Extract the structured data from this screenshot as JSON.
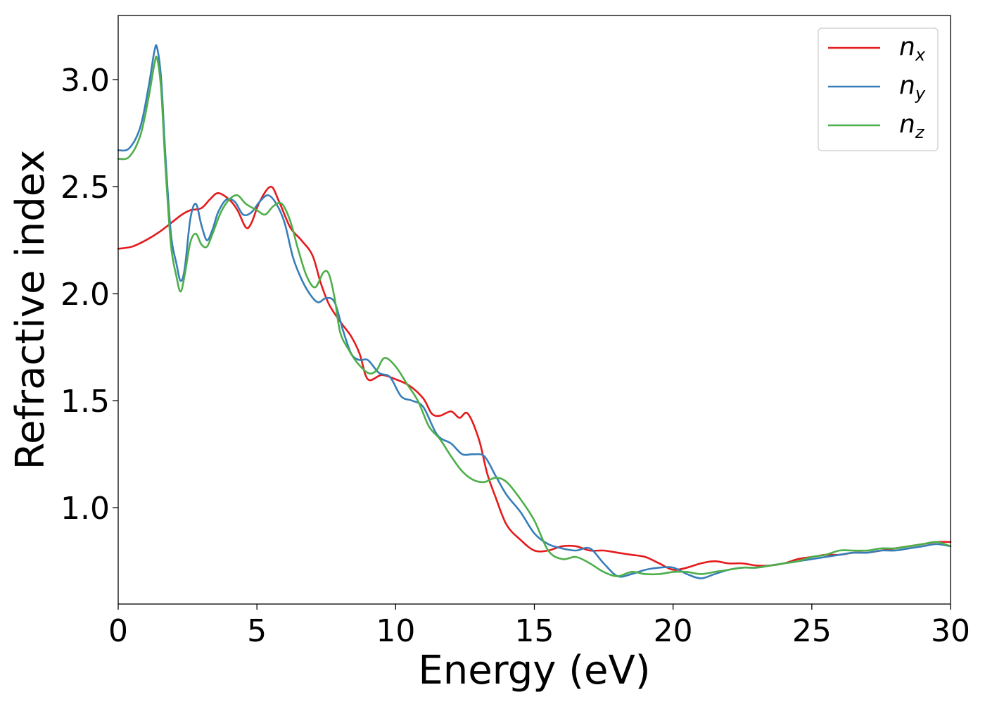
{
  "chart_data": {
    "type": "line",
    "title": "",
    "xlabel": "Energy (eV)",
    "ylabel": "Refractive index",
    "xlim": [
      0,
      30
    ],
    "ylim": [
      0.55,
      3.3
    ],
    "xticks": [
      "0",
      "5",
      "10",
      "15",
      "20",
      "25",
      "30"
    ],
    "yticks": [
      "1.0",
      "1.5",
      "2.0",
      "2.5",
      "3.0"
    ],
    "xtick_values": [
      0,
      5,
      10,
      15,
      20,
      25,
      30
    ],
    "ytick_values": [
      1.0,
      1.5,
      2.0,
      2.5,
      3.0
    ],
    "grid": false,
    "legend_position": "top-right",
    "series": [
      {
        "name": "n",
        "sub": "x",
        "color": "#e41a1c",
        "x": [
          0,
          0.5,
          1.0,
          1.5,
          2.0,
          2.3,
          2.6,
          3.0,
          3.3,
          3.6,
          4.0,
          4.3,
          4.6,
          4.8,
          5.1,
          5.5,
          5.8,
          6.2,
          6.6,
          7.0,
          7.3,
          7.6,
          8.0,
          8.4,
          8.7,
          9.0,
          9.5,
          10.0,
          10.5,
          11.0,
          11.3,
          11.6,
          12.0,
          12.3,
          12.6,
          13.0,
          13.3,
          13.6,
          14.0,
          14.5,
          15.0,
          15.5,
          16.0,
          16.5,
          17.0,
          17.5,
          18.0,
          18.5,
          19.0,
          19.5,
          20.0,
          20.5,
          21.0,
          21.5,
          22.0,
          22.5,
          23.0,
          23.5,
          24.0,
          24.5,
          25.0,
          25.5,
          26.0,
          26.5,
          27.0,
          27.5,
          28.0,
          28.5,
          29.0,
          29.5,
          30.0
        ],
        "y": [
          2.21,
          2.22,
          2.25,
          2.29,
          2.34,
          2.37,
          2.39,
          2.4,
          2.44,
          2.47,
          2.44,
          2.39,
          2.31,
          2.33,
          2.43,
          2.5,
          2.43,
          2.31,
          2.25,
          2.18,
          2.05,
          1.95,
          1.87,
          1.8,
          1.72,
          1.6,
          1.62,
          1.6,
          1.57,
          1.51,
          1.44,
          1.43,
          1.45,
          1.42,
          1.44,
          1.32,
          1.16,
          1.05,
          0.92,
          0.85,
          0.8,
          0.8,
          0.82,
          0.82,
          0.8,
          0.8,
          0.79,
          0.78,
          0.77,
          0.74,
          0.71,
          0.72,
          0.74,
          0.75,
          0.74,
          0.74,
          0.73,
          0.73,
          0.74,
          0.76,
          0.77,
          0.78,
          0.78,
          0.79,
          0.79,
          0.8,
          0.81,
          0.82,
          0.83,
          0.84,
          0.84
        ]
      },
      {
        "name": "n",
        "sub": "y",
        "color": "#377eb8",
        "x": [
          0,
          0.4,
          0.8,
          1.1,
          1.3,
          1.4,
          1.55,
          1.7,
          1.9,
          2.1,
          2.25,
          2.4,
          2.6,
          2.8,
          3.0,
          3.2,
          3.4,
          3.6,
          3.9,
          4.2,
          4.5,
          4.8,
          5.1,
          5.4,
          5.7,
          6.0,
          6.3,
          6.6,
          6.9,
          7.2,
          7.5,
          7.8,
          8.1,
          8.4,
          8.7,
          9.0,
          9.4,
          9.8,
          10.2,
          10.6,
          11.0,
          11.5,
          12.0,
          12.4,
          12.8,
          13.2,
          13.6,
          14.0,
          14.5,
          15.0,
          15.5,
          16.0,
          16.5,
          17.0,
          17.5,
          18.0,
          18.5,
          19.0,
          19.5,
          20.0,
          20.5,
          21.0,
          21.5,
          22.0,
          22.5,
          23.0,
          23.5,
          24.0,
          24.5,
          25.0,
          25.5,
          26.0,
          26.5,
          27.0,
          27.5,
          28.0,
          28.5,
          29.0,
          29.5,
          30.0
        ],
        "y": [
          2.67,
          2.68,
          2.78,
          2.97,
          3.13,
          3.15,
          3.0,
          2.65,
          2.28,
          2.14,
          2.06,
          2.12,
          2.35,
          2.42,
          2.32,
          2.25,
          2.3,
          2.38,
          2.44,
          2.43,
          2.37,
          2.38,
          2.43,
          2.46,
          2.42,
          2.33,
          2.17,
          2.07,
          2.0,
          1.96,
          1.98,
          1.96,
          1.83,
          1.72,
          1.69,
          1.69,
          1.63,
          1.61,
          1.52,
          1.5,
          1.47,
          1.34,
          1.3,
          1.25,
          1.25,
          1.24,
          1.15,
          1.06,
          0.98,
          0.88,
          0.83,
          0.81,
          0.8,
          0.81,
          0.74,
          0.68,
          0.69,
          0.71,
          0.72,
          0.72,
          0.69,
          0.67,
          0.69,
          0.71,
          0.72,
          0.72,
          0.73,
          0.74,
          0.75,
          0.76,
          0.77,
          0.78,
          0.79,
          0.79,
          0.8,
          0.8,
          0.81,
          0.82,
          0.83,
          0.82
        ]
      },
      {
        "name": "n",
        "sub": "z",
        "color": "#4daf4a",
        "x": [
          0,
          0.4,
          0.8,
          1.1,
          1.3,
          1.4,
          1.55,
          1.7,
          1.9,
          2.1,
          2.25,
          2.4,
          2.6,
          2.8,
          3.0,
          3.2,
          3.4,
          3.7,
          4.0,
          4.3,
          4.6,
          5.0,
          5.3,
          5.6,
          5.9,
          6.2,
          6.5,
          6.8,
          7.1,
          7.4,
          7.6,
          7.8,
          8.0,
          8.3,
          8.6,
          9.0,
          9.3,
          9.6,
          10.0,
          10.4,
          10.8,
          11.2,
          11.6,
          12.0,
          12.4,
          12.8,
          13.2,
          13.6,
          14.0,
          14.5,
          15.0,
          15.5,
          16.0,
          16.5,
          17.0,
          17.5,
          18.0,
          18.5,
          19.0,
          19.5,
          20.0,
          20.5,
          21.0,
          21.5,
          22.0,
          22.5,
          23.0,
          23.5,
          24.0,
          24.5,
          25.0,
          25.5,
          26.0,
          26.5,
          27.0,
          27.5,
          28.0,
          28.5,
          29.0,
          29.5,
          30.0
        ],
        "y": [
          2.63,
          2.64,
          2.74,
          2.92,
          3.07,
          3.1,
          2.95,
          2.6,
          2.23,
          2.08,
          2.01,
          2.09,
          2.24,
          2.28,
          2.23,
          2.22,
          2.28,
          2.38,
          2.44,
          2.46,
          2.42,
          2.39,
          2.37,
          2.41,
          2.42,
          2.34,
          2.2,
          2.08,
          2.03,
          2.1,
          2.09,
          1.98,
          1.82,
          1.74,
          1.68,
          1.63,
          1.64,
          1.7,
          1.66,
          1.58,
          1.5,
          1.38,
          1.32,
          1.24,
          1.17,
          1.13,
          1.12,
          1.14,
          1.12,
          1.04,
          0.94,
          0.8,
          0.76,
          0.77,
          0.74,
          0.7,
          0.68,
          0.7,
          0.69,
          0.69,
          0.7,
          0.7,
          0.69,
          0.7,
          0.71,
          0.72,
          0.72,
          0.73,
          0.74,
          0.75,
          0.77,
          0.78,
          0.8,
          0.8,
          0.8,
          0.81,
          0.81,
          0.82,
          0.83,
          0.84,
          0.82
        ]
      }
    ]
  }
}
